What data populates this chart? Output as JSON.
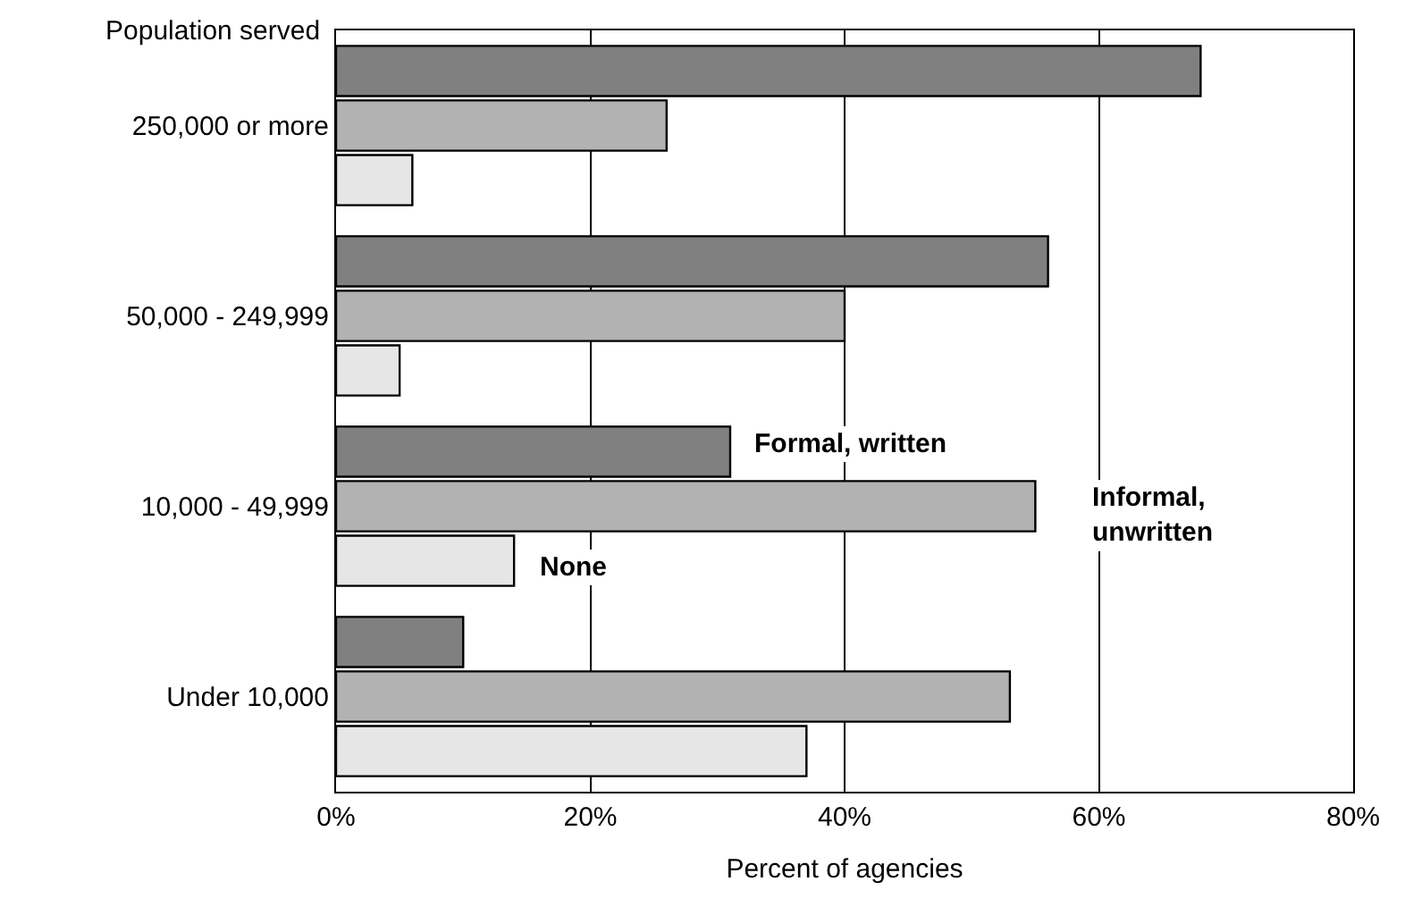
{
  "chart_data": {
    "type": "bar",
    "orientation": "horizontal",
    "xlabel": "Percent of agencies",
    "ylabel": "Population served",
    "categories": [
      "250,000 or more",
      "50,000 - 249,999",
      "10,000 - 49,999",
      "Under 10,000"
    ],
    "series": [
      {
        "name": "Formal, written",
        "color": "#808080",
        "values": [
          68,
          56,
          31,
          10
        ]
      },
      {
        "name": "Informal, unwritten",
        "color": "#b2b2b2",
        "values": [
          26,
          40,
          55,
          53
        ]
      },
      {
        "name": "None",
        "color": "#e6e6e6",
        "values": [
          6,
          5,
          14,
          37
        ]
      }
    ],
    "xlim": [
      0,
      80
    ],
    "xticks": [
      {
        "value": 0,
        "label": "0%"
      },
      {
        "value": 20,
        "label": "20%"
      },
      {
        "value": 40,
        "label": "40%"
      },
      {
        "value": 60,
        "label": "60%"
      },
      {
        "value": 80,
        "label": "80%"
      }
    ],
    "grid": "x",
    "legend": false
  }
}
